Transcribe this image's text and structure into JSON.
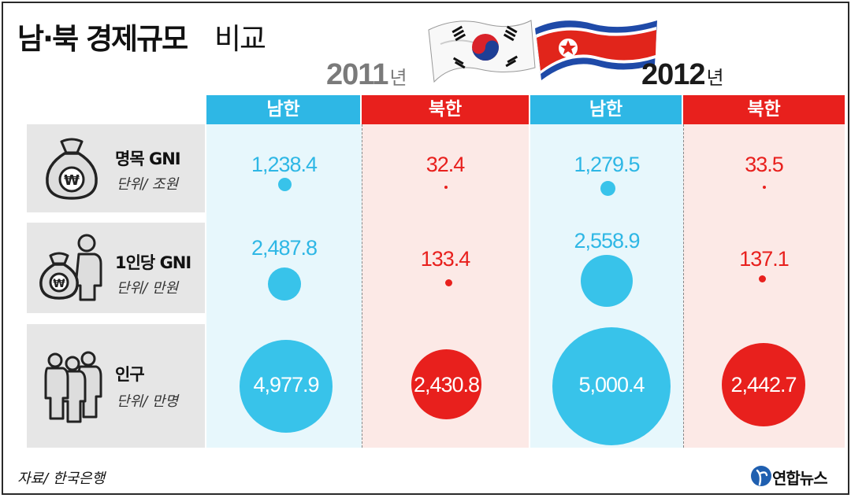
{
  "title": {
    "bold": "남·북 경제규모",
    "light": "비교"
  },
  "years": [
    {
      "year": "2011",
      "unit": "년"
    },
    {
      "year": "2012",
      "unit": "년"
    }
  ],
  "columns": [
    "남한",
    "북한",
    "남한",
    "북한"
  ],
  "rows": [
    {
      "name": "명목 GNI",
      "unit": "단위/ 조원",
      "icon": "money-bag-icon"
    },
    {
      "name": "1인당 GNI",
      "unit": "단위/ 만원",
      "icon": "person-money-bag-icon"
    },
    {
      "name": "인구",
      "unit": "단위/ 만명",
      "icon": "people-icon"
    }
  ],
  "chart_data": {
    "type": "bubble-table",
    "title": "남·북 경제규모 비교",
    "groups": [
      "2011년",
      "2012년"
    ],
    "series": [
      {
        "name": "남한",
        "color": "#2eb7e5"
      },
      {
        "name": "북한",
        "color": "#e8201d"
      }
    ],
    "metrics": [
      {
        "name": "명목 GNI",
        "unit": "단위/ 조원",
        "values": {
          "2011": {
            "남한": "1,238.4",
            "북한": "32.4"
          },
          "2012": {
            "남한": "1,279.5",
            "북한": "33.5"
          }
        }
      },
      {
        "name": "1인당 GNI",
        "unit": "단위/ 만원",
        "values": {
          "2011": {
            "남한": "2,487.8",
            "북한": "133.4"
          },
          "2012": {
            "남한": "2,558.9",
            "북한": "137.1"
          }
        }
      },
      {
        "name": "인구",
        "unit": "단위/ 만명",
        "values": {
          "2011": {
            "남한": "4,977.9",
            "북한": "2,430.8"
          },
          "2012": {
            "남한": "5,000.4",
            "북한": "2,442.7"
          }
        }
      }
    ],
    "numeric_values": {
      "명목 GNI": [
        1238.4,
        32.4,
        1279.5,
        33.5
      ],
      "1인당 GNI": [
        2487.8,
        133.4,
        2558.9,
        137.1
      ],
      "인구": [
        4977.9,
        2430.8,
        5000.4,
        2442.7
      ]
    }
  },
  "source": "자료/ 한국은행",
  "logo": {
    "text": "연합뉴스",
    "mark": "yonhap-logo-icon"
  },
  "colors": {
    "south": "#2eb7e5",
    "north": "#e8201d",
    "south_bg": "#e7f7fc",
    "north_bg": "#fce9e6"
  }
}
